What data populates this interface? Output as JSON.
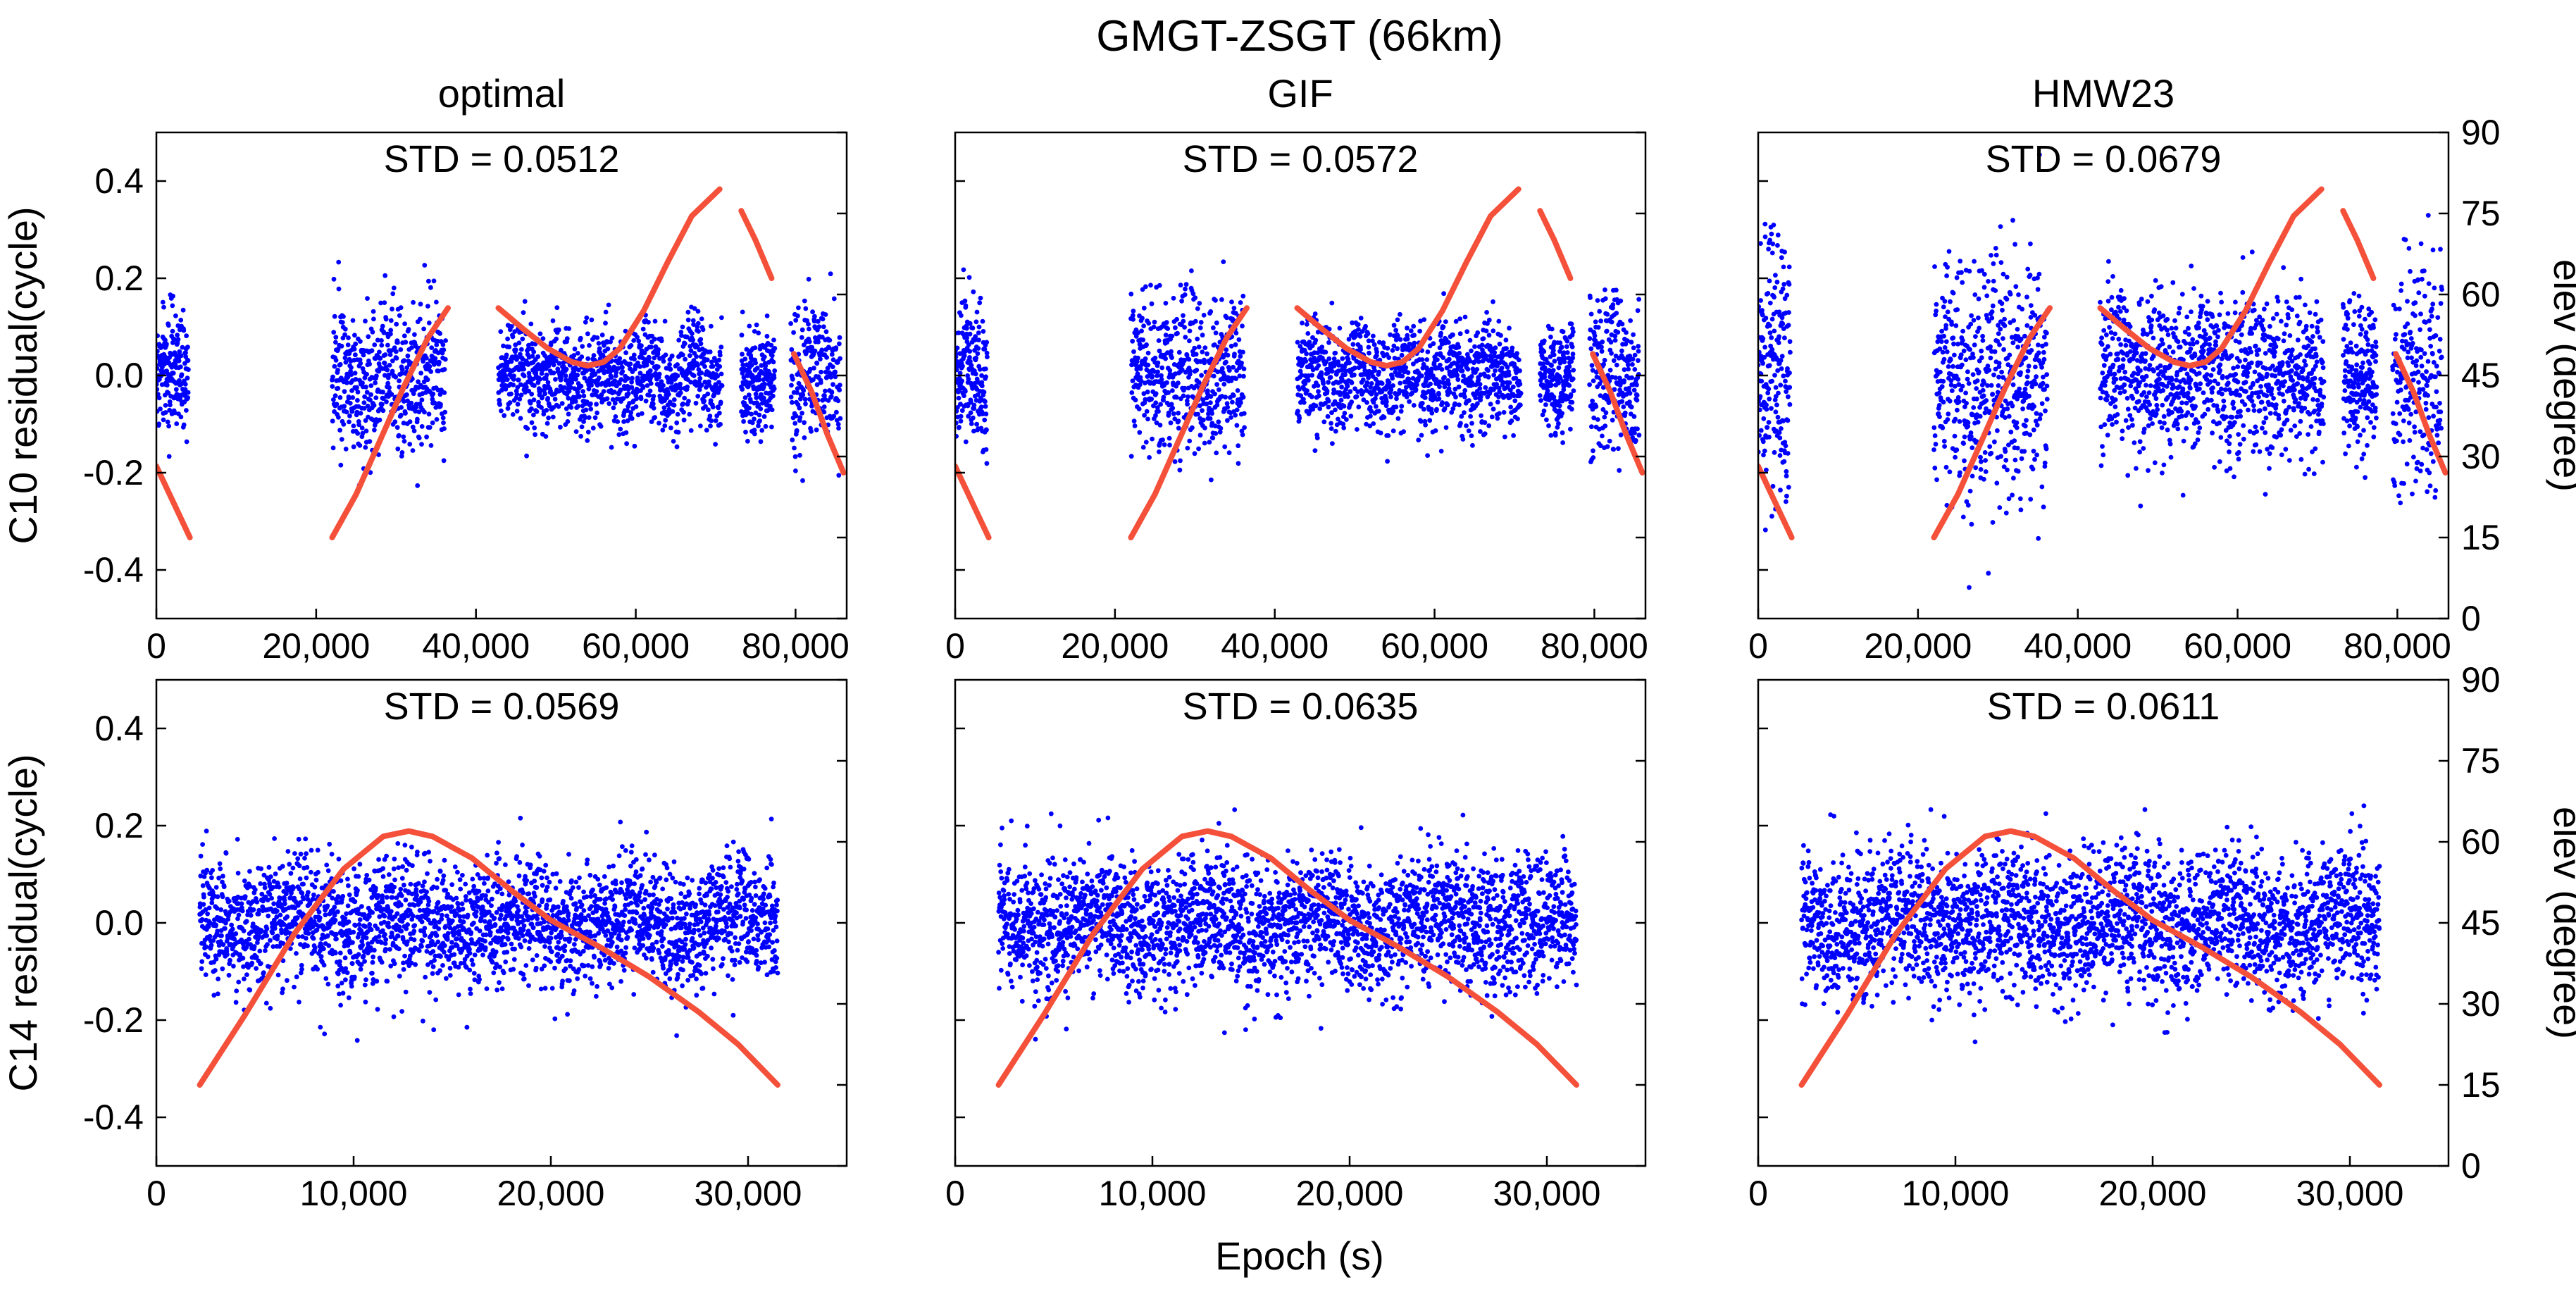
{
  "title": "GMGT-ZSGT (66km)",
  "xlabel": "Epoch (s)",
  "colors": {
    "residual": "#0000ff",
    "elevation": "#f4503a",
    "axis": "#000000",
    "background": "#ffffff"
  },
  "chart_data": [
    {
      "id": "c10-optimal",
      "type": "scatter",
      "column_title": "optimal",
      "satellite": "C10",
      "stat": "STD = 0.0512",
      "ylabel": "C10 residual(cycle)",
      "y2label": "",
      "xlim": [
        0,
        86400
      ],
      "ylim": [
        -0.5,
        0.5
      ],
      "y2lim": [
        0,
        90
      ],
      "xticks": [
        0,
        20000,
        40000,
        60000,
        80000
      ],
      "xtick_labels": [
        "0",
        "20,000",
        "40,000",
        "60,000",
        "80,000"
      ],
      "yticks": [
        -0.4,
        -0.2,
        0.0,
        0.2,
        0.4
      ],
      "ytick_labels": [
        "-0.4",
        "-0.2",
        "0.0",
        "0.2",
        "0.4"
      ],
      "y2ticks": [
        0,
        15,
        30,
        45,
        60,
        75,
        90
      ],
      "y2tick_labels": [
        "",
        "",
        "",
        "",
        "",
        "",
        ""
      ],
      "residual_segments": [
        {
          "x0": 0,
          "x1": 4000,
          "amp": 0.06,
          "spike": 0.22
        },
        {
          "x0": 22000,
          "x1": 36200,
          "amp": 0.07,
          "spike": 0.22
        },
        {
          "x0": 42800,
          "x1": 70800,
          "amp": 0.05,
          "spike": 0.17
        },
        {
          "x0": 73200,
          "x1": 77400,
          "amp": 0.05,
          "spike": 0.13
        },
        {
          "x0": 79400,
          "x1": 85600,
          "amp": 0.07,
          "spike": 0.22
        }
      ],
      "elevation_series": [
        {
          "x": [
            0,
            4200
          ],
          "y": [
            28.2,
            15
          ]
        },
        {
          "x": [
            22000,
            25000,
            28000,
            31000,
            34000,
            36500
          ],
          "y": [
            15,
            23,
            33,
            43,
            52,
            57.5
          ]
        },
        {
          "x": [
            42800,
            46000,
            49000,
            52000,
            54000,
            56000,
            58000,
            61000,
            64000,
            67000,
            70500
          ],
          "y": [
            57.5,
            53.5,
            50,
            47.5,
            46.8,
            47.5,
            50,
            57,
            66,
            74.5,
            79.5
          ]
        },
        {
          "x": [
            73200,
            75000,
            77000
          ],
          "y": [
            75.5,
            70,
            63
          ]
        },
        {
          "x": [
            79800,
            82000,
            84000,
            86000
          ],
          "y": [
            49,
            42,
            34,
            27
          ]
        }
      ]
    },
    {
      "id": "c10-gif",
      "type": "scatter",
      "column_title": "GIF",
      "satellite": "C10",
      "stat": "STD = 0.0572",
      "ylabel": "",
      "y2label": "",
      "xlim": [
        0,
        86400
      ],
      "ylim": [
        -0.5,
        0.5
      ],
      "y2lim": [
        0,
        90
      ],
      "xticks": [
        0,
        20000,
        40000,
        60000,
        80000
      ],
      "xtick_labels": [
        "0",
        "20,000",
        "40,000",
        "60,000",
        "80,000"
      ],
      "yticks": [
        -0.4,
        -0.2,
        0.0,
        0.2,
        0.4
      ],
      "ytick_labels": [
        "",
        "",
        "",
        "",
        ""
      ],
      "y2ticks": [
        0,
        15,
        30,
        45,
        60,
        75,
        90
      ],
      "y2tick_labels": [
        "",
        "",
        "",
        "",
        "",
        "",
        ""
      ],
      "residual_segments": [
        {
          "x0": 0,
          "x1": 4000,
          "amp": 0.07,
          "spike": 0.26
        },
        {
          "x0": 22000,
          "x1": 36200,
          "amp": 0.08,
          "spike": 0.25
        },
        {
          "x0": 42800,
          "x1": 70800,
          "amp": 0.05,
          "spike": 0.18
        },
        {
          "x0": 73200,
          "x1": 77400,
          "amp": 0.05,
          "spike": 0.14
        },
        {
          "x0": 79400,
          "x1": 85600,
          "amp": 0.08,
          "spike": 0.23
        }
      ],
      "elevation_series": [
        {
          "x": [
            0,
            4200
          ],
          "y": [
            28.2,
            15
          ]
        },
        {
          "x": [
            22000,
            25000,
            28000,
            31000,
            34000,
            36500
          ],
          "y": [
            15,
            23,
            33,
            43,
            52,
            57.5
          ]
        },
        {
          "x": [
            42800,
            46000,
            49000,
            52000,
            54000,
            56000,
            58000,
            61000,
            64000,
            67000,
            70500
          ],
          "y": [
            57.5,
            53.5,
            50,
            47.5,
            46.8,
            47.5,
            50,
            57,
            66,
            74.5,
            79.5
          ]
        },
        {
          "x": [
            73200,
            75000,
            77000
          ],
          "y": [
            75.5,
            70,
            63
          ]
        },
        {
          "x": [
            79800,
            82000,
            84000,
            86000
          ],
          "y": [
            49,
            42,
            34,
            27
          ]
        }
      ]
    },
    {
      "id": "c10-hmw23",
      "type": "scatter",
      "column_title": "HMW23",
      "satellite": "C10",
      "stat": "STD = 0.0679",
      "ylabel": "",
      "y2label": "elev (degree)",
      "xlim": [
        0,
        86400
      ],
      "ylim": [
        -0.5,
        0.5
      ],
      "y2lim": [
        0,
        90
      ],
      "xticks": [
        0,
        20000,
        40000,
        60000,
        80000
      ],
      "xtick_labels": [
        "0",
        "20,000",
        "40,000",
        "60,000",
        "80,000"
      ],
      "yticks": [
        -0.4,
        -0.2,
        0.0,
        0.2,
        0.4
      ],
      "ytick_labels": [
        "",
        "",
        "",
        "",
        ""
      ],
      "y2ticks": [
        0,
        15,
        30,
        45,
        60,
        75,
        90
      ],
      "y2tick_labels": [
        "0",
        "15",
        "30",
        "45",
        "60",
        "75",
        "90"
      ],
      "residual_segments": [
        {
          "x0": 0,
          "x1": 4000,
          "amp": 0.13,
          "spike": 0.4
        },
        {
          "x0": 22000,
          "x1": 36200,
          "amp": 0.12,
          "spike": 0.45
        },
        {
          "x0": 42800,
          "x1": 70800,
          "amp": 0.08,
          "spike": 0.25
        },
        {
          "x0": 73200,
          "x1": 77400,
          "amp": 0.08,
          "spike": 0.2
        },
        {
          "x0": 79400,
          "x1": 85600,
          "amp": 0.12,
          "spike": 0.3
        }
      ],
      "elevation_series": [
        {
          "x": [
            0,
            4200
          ],
          "y": [
            28.2,
            15
          ]
        },
        {
          "x": [
            22000,
            25000,
            28000,
            31000,
            34000,
            36500
          ],
          "y": [
            15,
            23,
            33,
            43,
            52,
            57.5
          ]
        },
        {
          "x": [
            42800,
            46000,
            49000,
            52000,
            54000,
            56000,
            58000,
            61000,
            64000,
            67000,
            70500
          ],
          "y": [
            57.5,
            53.5,
            50,
            47.5,
            46.8,
            47.5,
            50,
            57,
            66,
            74.5,
            79.5
          ]
        },
        {
          "x": [
            73200,
            75000,
            77000
          ],
          "y": [
            75.5,
            70,
            63
          ]
        },
        {
          "x": [
            79800,
            82000,
            84000,
            86000
          ],
          "y": [
            49,
            42,
            34,
            27
          ]
        }
      ]
    },
    {
      "id": "c14-optimal",
      "type": "scatter",
      "column_title": "",
      "satellite": "C14",
      "stat": "STD = 0.0569",
      "ylabel": "C14 residual(cycle)",
      "y2label": "",
      "xlim": [
        0,
        35000
      ],
      "ylim": [
        -0.5,
        0.5
      ],
      "y2lim": [
        0,
        90
      ],
      "xticks": [
        0,
        10000,
        20000,
        30000
      ],
      "xtick_labels": [
        "0",
        "10,000",
        "20,000",
        "30,000"
      ],
      "yticks": [
        -0.4,
        -0.2,
        0.0,
        0.2,
        0.4
      ],
      "ytick_labels": [
        "-0.4",
        "-0.2",
        "0.0",
        "0.2",
        "0.4"
      ],
      "y2ticks": [
        0,
        15,
        30,
        45,
        60,
        75,
        90
      ],
      "y2tick_labels": [
        "",
        "",
        "",
        "",
        "",
        "",
        ""
      ],
      "residual_segments": [
        {
          "x0": 2200,
          "x1": 31500,
          "amp": 0.06,
          "spike": 0.23
        }
      ],
      "elevation_series": [
        {
          "x": [
            2200,
            4500,
            7000,
            9500,
            11500,
            12800,
            14000,
            16000,
            18000,
            20000,
            22500,
            25000,
            27500,
            29500,
            31500
          ],
          "y": [
            15,
            28,
            43,
            55,
            61,
            62,
            61,
            57,
            51,
            45.5,
            40.5,
            35,
            28.5,
            22.5,
            15
          ]
        }
      ]
    },
    {
      "id": "c14-gif",
      "type": "scatter",
      "column_title": "",
      "satellite": "C14",
      "stat": "STD = 0.0635",
      "ylabel": "",
      "y2label": "",
      "xlim": [
        0,
        35000
      ],
      "ylim": [
        -0.5,
        0.5
      ],
      "y2lim": [
        0,
        90
      ],
      "xticks": [
        0,
        10000,
        20000,
        30000
      ],
      "xtick_labels": [
        "0",
        "10,000",
        "20,000",
        "30,000"
      ],
      "yticks": [
        -0.4,
        -0.2,
        0.0,
        0.2,
        0.4
      ],
      "ytick_labels": [
        "",
        "",
        "",
        "",
        ""
      ],
      "y2ticks": [
        0,
        15,
        30,
        45,
        60,
        75,
        90
      ],
      "y2tick_labels": [
        "",
        "",
        "",
        "",
        "",
        "",
        ""
      ],
      "residual_segments": [
        {
          "x0": 2200,
          "x1": 31500,
          "amp": 0.065,
          "spike": 0.25
        }
      ],
      "elevation_series": [
        {
          "x": [
            2200,
            4500,
            7000,
            9500,
            11500,
            12800,
            14000,
            16000,
            18000,
            20000,
            22500,
            25000,
            27500,
            29500,
            31500
          ],
          "y": [
            15,
            28,
            43,
            55,
            61,
            62,
            61,
            57,
            51,
            45.5,
            40.5,
            35,
            28.5,
            22.5,
            15
          ]
        }
      ]
    },
    {
      "id": "c14-hmw23",
      "type": "scatter",
      "column_title": "",
      "satellite": "C14",
      "stat": "STD = 0.0611",
      "ylabel": "",
      "y2label": "elev (degree)",
      "xlim": [
        0,
        35000
      ],
      "ylim": [
        -0.5,
        0.5
      ],
      "y2lim": [
        0,
        90
      ],
      "xticks": [
        0,
        10000,
        20000,
        30000
      ],
      "xtick_labels": [
        "0",
        "10,000",
        "20,000",
        "30,000"
      ],
      "yticks": [
        -0.4,
        -0.2,
        0.0,
        0.2,
        0.4
      ],
      "ytick_labels": [
        "",
        "",
        "",
        "",
        ""
      ],
      "y2ticks": [
        0,
        15,
        30,
        45,
        60,
        75,
        90
      ],
      "y2tick_labels": [
        "0",
        "15",
        "30",
        "45",
        "60",
        "75",
        "90"
      ],
      "residual_segments": [
        {
          "x0": 2200,
          "x1": 31500,
          "amp": 0.07,
          "spike": 0.24
        }
      ],
      "elevation_series": [
        {
          "x": [
            2200,
            4500,
            7000,
            9500,
            11500,
            12800,
            14000,
            16000,
            18000,
            20000,
            22500,
            25000,
            27500,
            29500,
            31500
          ],
          "y": [
            15,
            28,
            43,
            55,
            61,
            62,
            61,
            57,
            51,
            45.5,
            40.5,
            35,
            28.5,
            22.5,
            15
          ]
        }
      ]
    }
  ]
}
